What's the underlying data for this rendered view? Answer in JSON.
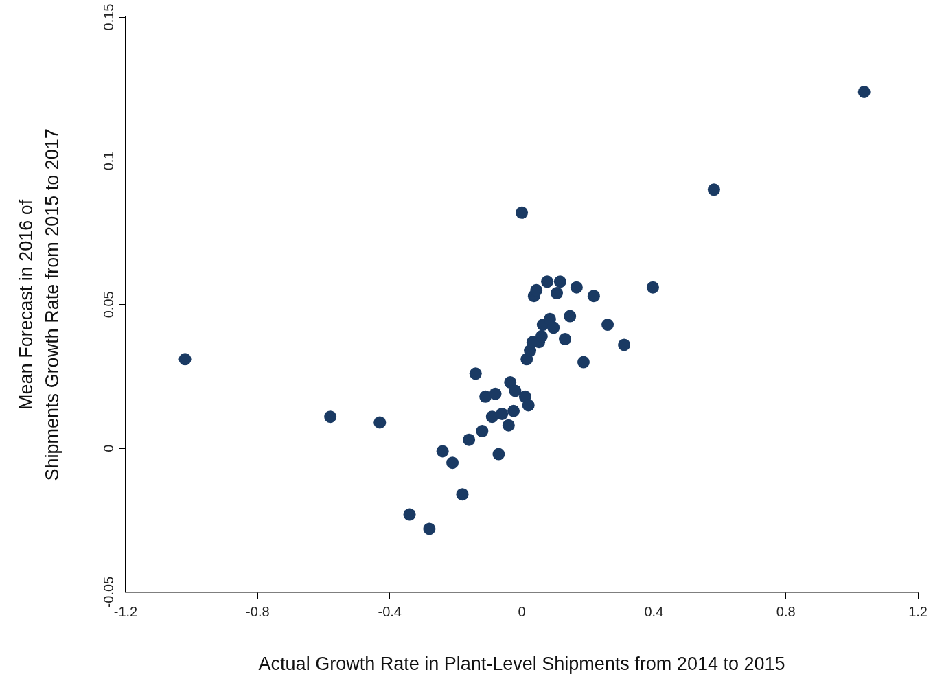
{
  "chart_data": {
    "type": "scatter",
    "xlabel": "Actual Growth Rate in Plant-Level Shipments from 2014 to 2015",
    "ylabel": "Mean Forecast in 2016 of\nShipments Growth Rate from 2015 to 2017",
    "x": [
      -1.02,
      -0.58,
      -0.43,
      -0.34,
      -0.28,
      -0.24,
      -0.21,
      -0.18,
      -0.16,
      -0.14,
      -0.12,
      -0.11,
      -0.09,
      -0.08,
      -0.07,
      -0.06,
      -0.04,
      -0.035,
      -0.025,
      -0.02,
      -0.01,
      0,
      0.01,
      0.02,
      0,
      0.015,
      0.025,
      0.033,
      0.052,
      0.06,
      0.037,
      0.044,
      0.064,
      0.085,
      0.096,
      0.077,
      0.116,
      0.106,
      0.131,
      0.146,
      0.166,
      0.187,
      0.218,
      0.26,
      0.31,
      0.397,
      0.582,
      1.037
    ],
    "values": [
      0.031,
      0.011,
      0.009,
      -0.023,
      -0.028,
      -0.001,
      -0.005,
      -0.016,
      0.003,
      0.026,
      0.006,
      0.018,
      0.011,
      0.019,
      -0.002,
      0.012,
      0.008,
      0.023,
      0.013,
      0.02,
      null,
      null,
      0.018,
      0.015,
      0.082,
      0.031,
      0.034,
      0.037,
      0.037,
      0.039,
      0.053,
      0.055,
      0.043,
      0.045,
      0.042,
      0.058,
      0.058,
      0.054,
      0.038,
      0.046,
      0.056,
      0.03,
      0.053,
      0.043,
      0.036,
      0.056,
      0.09,
      0.124
    ],
    "color": "#1a3a63",
    "marker": "circle",
    "grid": false,
    "legend": false,
    "xlim": [
      -1.2,
      1.2
    ],
    "xticks": [
      -1.2,
      -0.8,
      -0.4,
      0,
      0.4,
      0.8,
      1.2
    ],
    "ylim": [
      -0.05,
      0.15
    ],
    "yticks": [
      -0.05,
      0,
      0.05,
      0.1,
      0.15
    ]
  }
}
